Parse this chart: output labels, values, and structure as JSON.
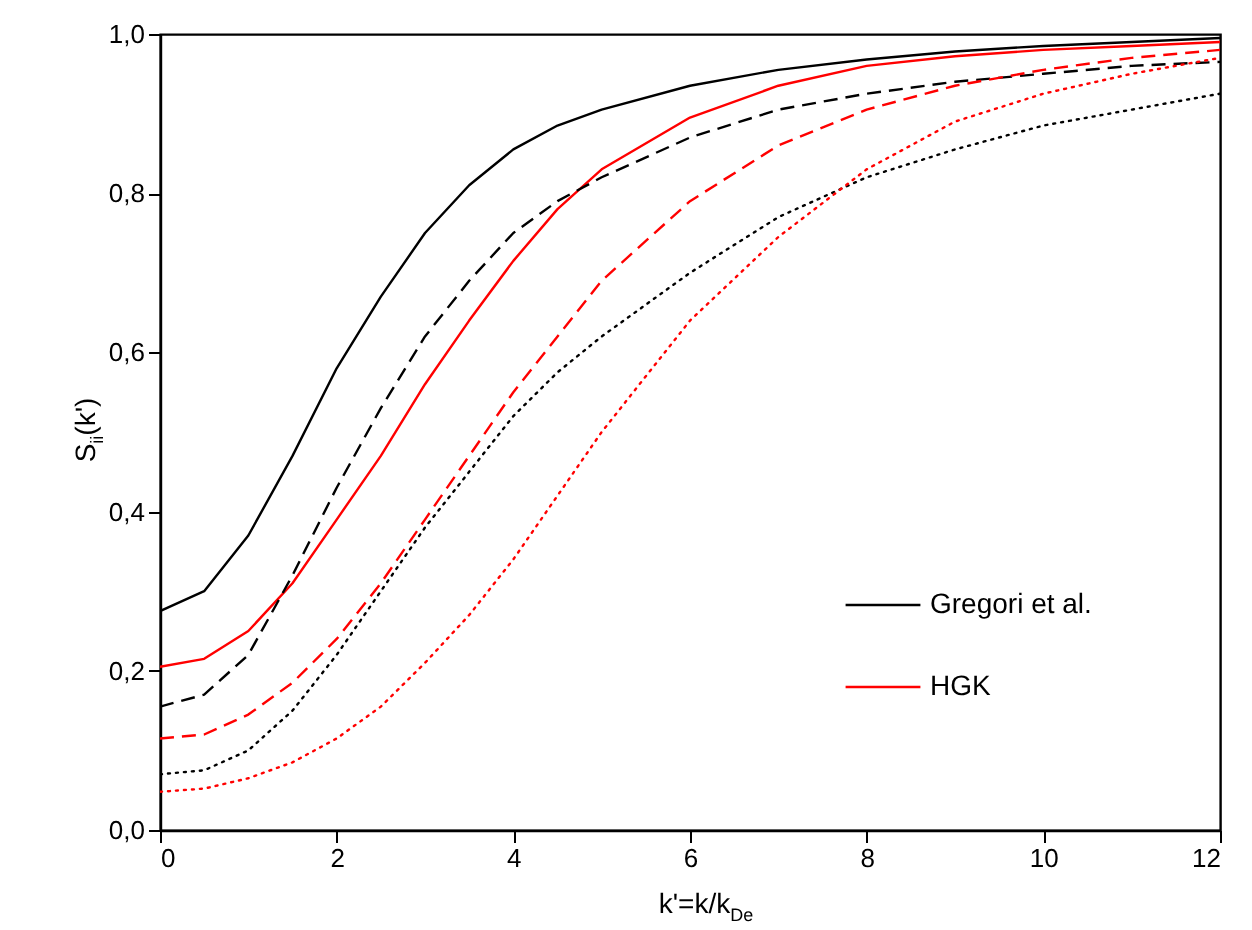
{
  "chart_data": {
    "type": "line",
    "xlabel": "k'=k/k$_{De}$",
    "ylabel": "S$_{ii}$(k')",
    "x": [
      0,
      0.5,
      1,
      1.5,
      2,
      2.5,
      3,
      3.5,
      4,
      4.5,
      5,
      6,
      7,
      8,
      9,
      10,
      11,
      12
    ],
    "series": [
      {
        "name": "Gregori et al.",
        "color": "#000000",
        "line_style": "solid",
        "values": [
          0.275,
          0.3,
          0.37,
          0.47,
          0.58,
          0.67,
          0.75,
          0.81,
          0.855,
          0.885,
          0.905,
          0.935,
          0.955,
          0.968,
          0.978,
          0.985,
          0.99,
          0.995
        ]
      },
      {
        "name": "HGK",
        "color": "#ff0000",
        "line_style": "solid",
        "values": [
          0.205,
          0.215,
          0.25,
          0.31,
          0.39,
          0.47,
          0.56,
          0.64,
          0.715,
          0.78,
          0.83,
          0.895,
          0.935,
          0.96,
          0.972,
          0.98,
          0.985,
          0.99
        ]
      },
      {
        "color": "#000000",
        "line_style": "dashed",
        "values": [
          0.155,
          0.17,
          0.22,
          0.32,
          0.43,
          0.53,
          0.62,
          0.69,
          0.75,
          0.79,
          0.82,
          0.87,
          0.905,
          0.925,
          0.94,
          0.95,
          0.96,
          0.965
        ]
      },
      {
        "color": "#ff0000",
        "line_style": "dashed",
        "values": [
          0.115,
          0.12,
          0.145,
          0.185,
          0.24,
          0.31,
          0.39,
          0.47,
          0.55,
          0.62,
          0.69,
          0.79,
          0.86,
          0.905,
          0.935,
          0.955,
          0.97,
          0.98
        ]
      },
      {
        "color": "#000000",
        "line_style": "dotted",
        "values": [
          0.07,
          0.075,
          0.1,
          0.15,
          0.22,
          0.3,
          0.38,
          0.45,
          0.52,
          0.575,
          0.62,
          0.7,
          0.77,
          0.82,
          0.855,
          0.885,
          0.905,
          0.925
        ]
      },
      {
        "color": "#ff0000",
        "line_style": "dotted",
        "values": [
          0.048,
          0.052,
          0.065,
          0.085,
          0.115,
          0.155,
          0.21,
          0.27,
          0.34,
          0.42,
          0.5,
          0.64,
          0.745,
          0.83,
          0.89,
          0.925,
          0.95,
          0.97
        ]
      }
    ],
    "xlim": [
      0,
      12
    ],
    "xticks": [
      0,
      2,
      4,
      6,
      8,
      10,
      12
    ],
    "ylim": [
      0,
      1
    ],
    "yticks": [
      {
        "value": 0,
        "label": "0,0"
      },
      {
        "value": 0.2,
        "label": "0,2"
      },
      {
        "value": 0.4,
        "label": "0,4"
      },
      {
        "value": 0.6,
        "label": "0,6"
      },
      {
        "value": 0.8,
        "label": "0,8"
      },
      {
        "value": 1,
        "label": "1,0"
      }
    ],
    "grid": false,
    "legend": "bottom right",
    "marker": "none"
  }
}
